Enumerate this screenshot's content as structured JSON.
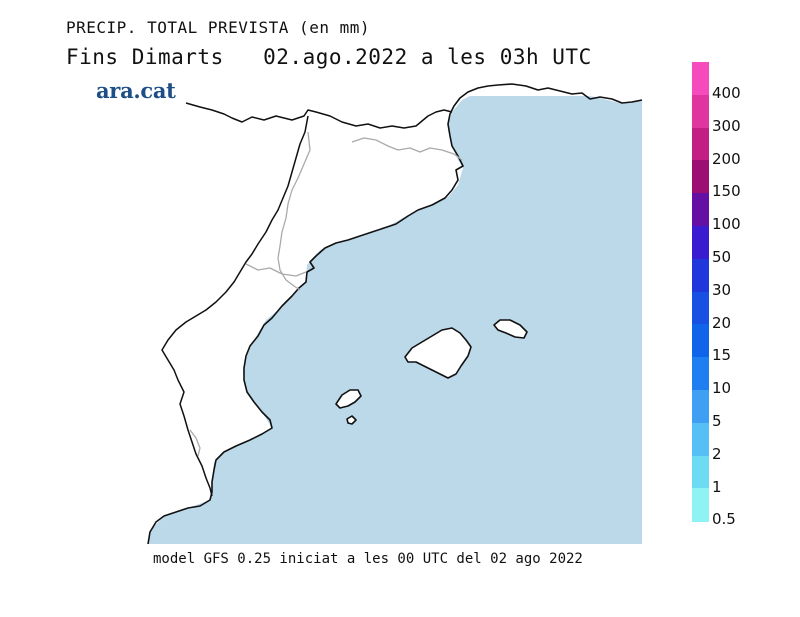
{
  "header": {
    "title": "PRECIP. TOTAL PREVISTA (en mm)",
    "subtitle": "Fins Dimarts   02.ago.2022 a les 03h UTC"
  },
  "logo": {
    "text": "ara.cat",
    "color": "#1d4f86"
  },
  "footer": {
    "text": "model GFS 0.25 iniciat a les 00 UTC del 02 ago 2022"
  },
  "map": {
    "sea_color": "#bcd9ea",
    "land_color": "#ffffff",
    "coast_color": "#111111",
    "border_color": "#aaaaaa"
  },
  "legend": {
    "unit": "mm",
    "entries": [
      {
        "label": "400",
        "color": "#f54bbd"
      },
      {
        "label": "300",
        "color": "#e0359f"
      },
      {
        "label": "200",
        "color": "#c21f84"
      },
      {
        "label": "150",
        "color": "#9c0e72"
      },
      {
        "label": "100",
        "color": "#6510a4"
      },
      {
        "label": "50",
        "color": "#3a1bd0"
      },
      {
        "label": "30",
        "color": "#2037dc"
      },
      {
        "label": "20",
        "color": "#1750e3"
      },
      {
        "label": "15",
        "color": "#0f64ea"
      },
      {
        "label": "10",
        "color": "#1f7ef0"
      },
      {
        "label": "5",
        "color": "#3f9ff3"
      },
      {
        "label": "2",
        "color": "#56bff5"
      },
      {
        "label": "1",
        "color": "#6ddcf3"
      },
      {
        "label": "0.5",
        "color": "#8ff3f4"
      }
    ]
  }
}
